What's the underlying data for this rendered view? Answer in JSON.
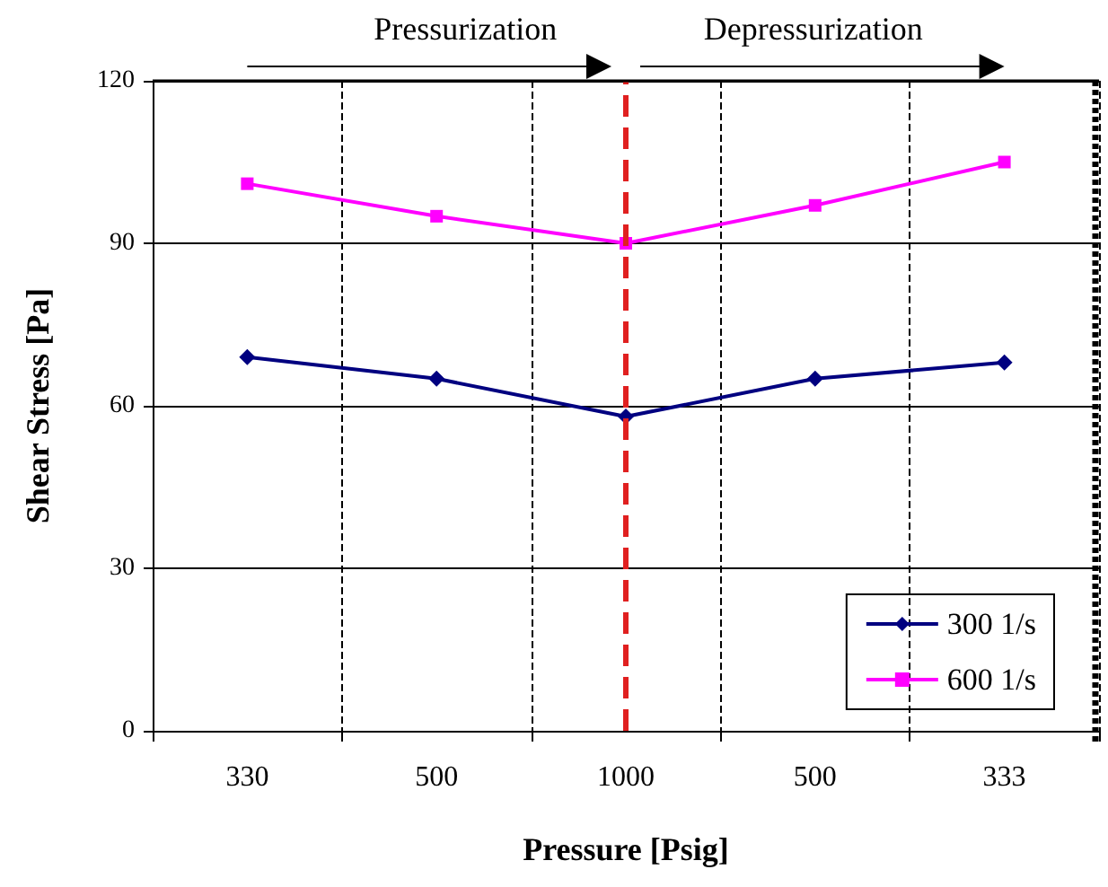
{
  "chart_data": {
    "type": "line",
    "xlabel": "Pressure [Psig]",
    "ylabel": "Shear Stress [Pa]",
    "categories": [
      "330",
      "500",
      "1000",
      "500",
      "333"
    ],
    "series": [
      {
        "name": "300 1/s",
        "color": "#000080",
        "marker": "diamond",
        "values": [
          69,
          65,
          58,
          65,
          68
        ]
      },
      {
        "name": "600 1/s",
        "color": "#ff00ff",
        "marker": "square",
        "values": [
          101,
          95,
          90,
          97,
          105
        ]
      }
    ],
    "ylim": [
      0,
      120
    ],
    "yticks": [
      0,
      30,
      60,
      90,
      120
    ],
    "grid": true,
    "legend": "bottom right",
    "ref_lines": [
      {
        "axis": "x",
        "value": "1000",
        "color": "#e02020",
        "line_style": "dashed"
      }
    ],
    "annotations": [
      "Pressurization",
      "Depressurization"
    ]
  }
}
